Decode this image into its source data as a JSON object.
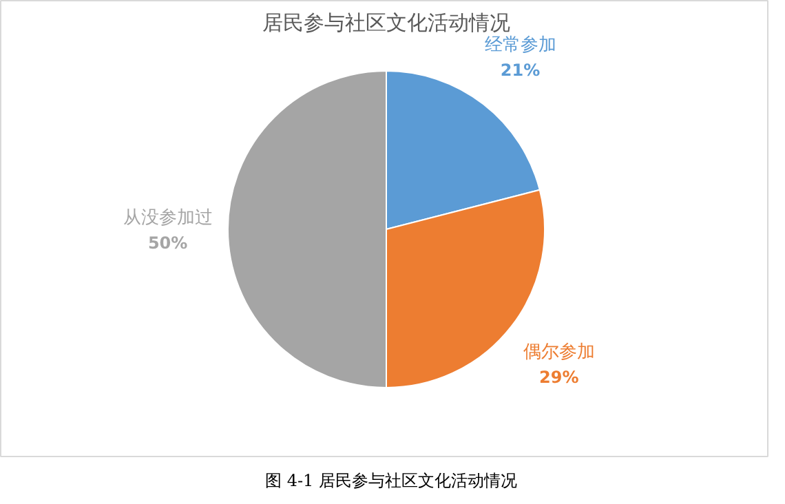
{
  "chart_data": {
    "type": "pie",
    "title": "居民参与社区文化活动情况",
    "categories": [
      "经常参加",
      "偶尔参加",
      "从没参加过"
    ],
    "values": [
      21,
      29,
      50
    ],
    "colors": [
      "#5b9bd5",
      "#ed7d31",
      "#a5a5a5"
    ],
    "value_labels": [
      "21%",
      "29%",
      "50%"
    ],
    "annotations": [
      "图 4-1 居民参与社区文化活动情况"
    ]
  }
}
